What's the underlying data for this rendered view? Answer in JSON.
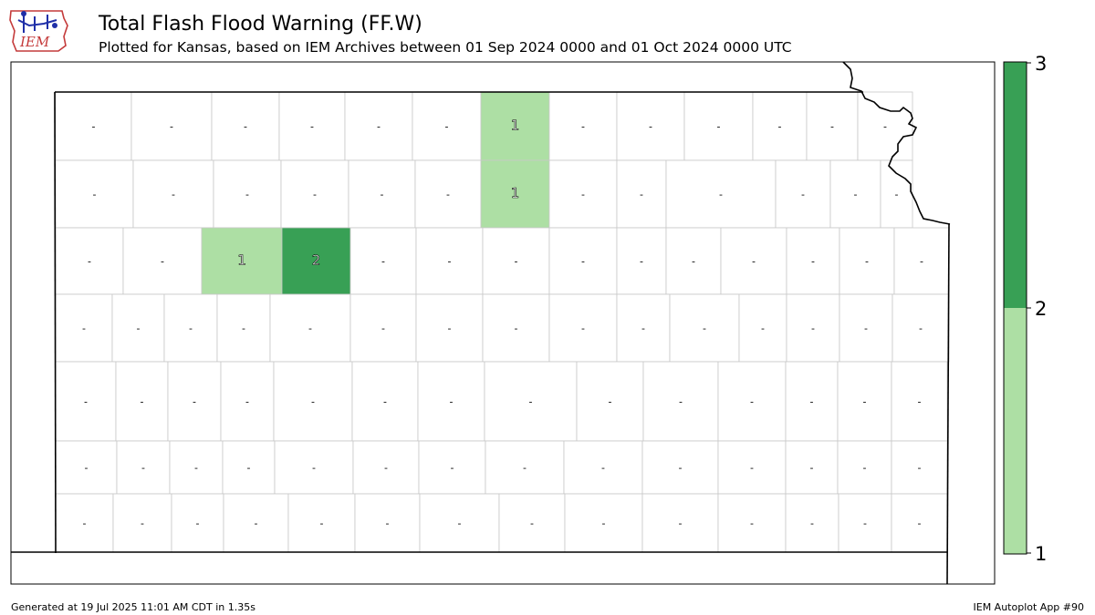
{
  "header": {
    "logo_text": "IEM",
    "title": "Total Flash Flood Warning (FF.W)",
    "subtitle": "Plotted for Kansas, based on IEM Archives  between 01 Sep 2024 0000 and 01 Oct 2024 0000 UTC"
  },
  "legend": {
    "ticks": [
      "1",
      "2",
      "3"
    ],
    "colors": {
      "one": "#addfa4",
      "two": "#38a055"
    }
  },
  "map": {
    "zero_label": "-",
    "highlighted_counties": [
      {
        "label": "1",
        "value": 1
      },
      {
        "label": "1",
        "value": 1
      },
      {
        "label": "1",
        "value": 1
      },
      {
        "label": "2",
        "value": 2
      }
    ]
  },
  "footer": {
    "generated": "Generated at 19 Jul 2025 11:01 AM CDT in 1.35s",
    "app": "IEM Autoplot App #90"
  }
}
